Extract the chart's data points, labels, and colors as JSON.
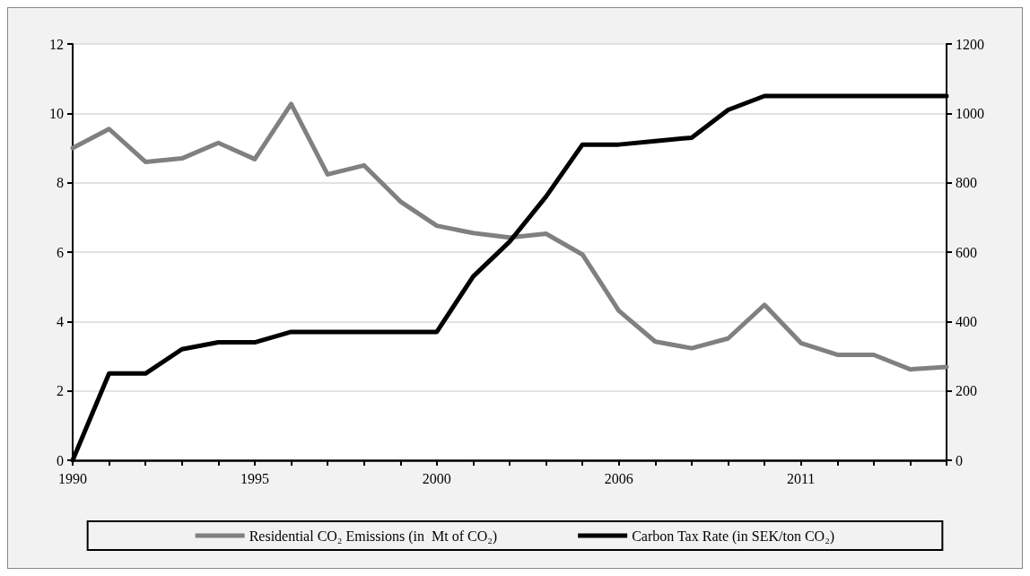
{
  "chart_data": {
    "type": "line",
    "categories": [
      "1990",
      null,
      null,
      null,
      null,
      "1995",
      null,
      null,
      null,
      null,
      "2000",
      null,
      null,
      null,
      null,
      "2006",
      null,
      null,
      null,
      null,
      "2011",
      null,
      null,
      null,
      null
    ],
    "series": [
      {
        "name": "Residential CO₂ Emissions (in  Mt of CO₂)",
        "color": "#808080",
        "values": [
          9.0,
          9.55,
          8.6,
          8.7,
          9.15,
          8.68,
          10.27,
          8.24,
          8.5,
          7.46,
          6.76,
          6.55,
          6.42,
          6.53,
          5.93,
          4.31,
          3.42,
          3.23,
          3.51,
          4.48,
          3.38,
          3.04,
          3.04,
          2.62,
          2.69
        ]
      },
      {
        "name": "Carbon Tax Rate (in SEK/ton CO₂)",
        "color": "#000000",
        "axis": "y2",
        "values": [
          0,
          250,
          250,
          320,
          340,
          340,
          370,
          370,
          370,
          370,
          370,
          530,
          630,
          760,
          910,
          910,
          920,
          930,
          1010,
          1050,
          1050,
          1050,
          1050,
          1050,
          1050
        ]
      }
    ],
    "ylim": [
      0,
      12
    ],
    "yticks": [
      0,
      2,
      4,
      6,
      8,
      10,
      12
    ],
    "y2lim": [
      0,
      1200
    ],
    "y2ticks": [
      0,
      200,
      400,
      600,
      800,
      1000,
      1200
    ],
    "grid": "y",
    "legend": "bottom",
    "marker": "none",
    "line_style": "solid"
  }
}
